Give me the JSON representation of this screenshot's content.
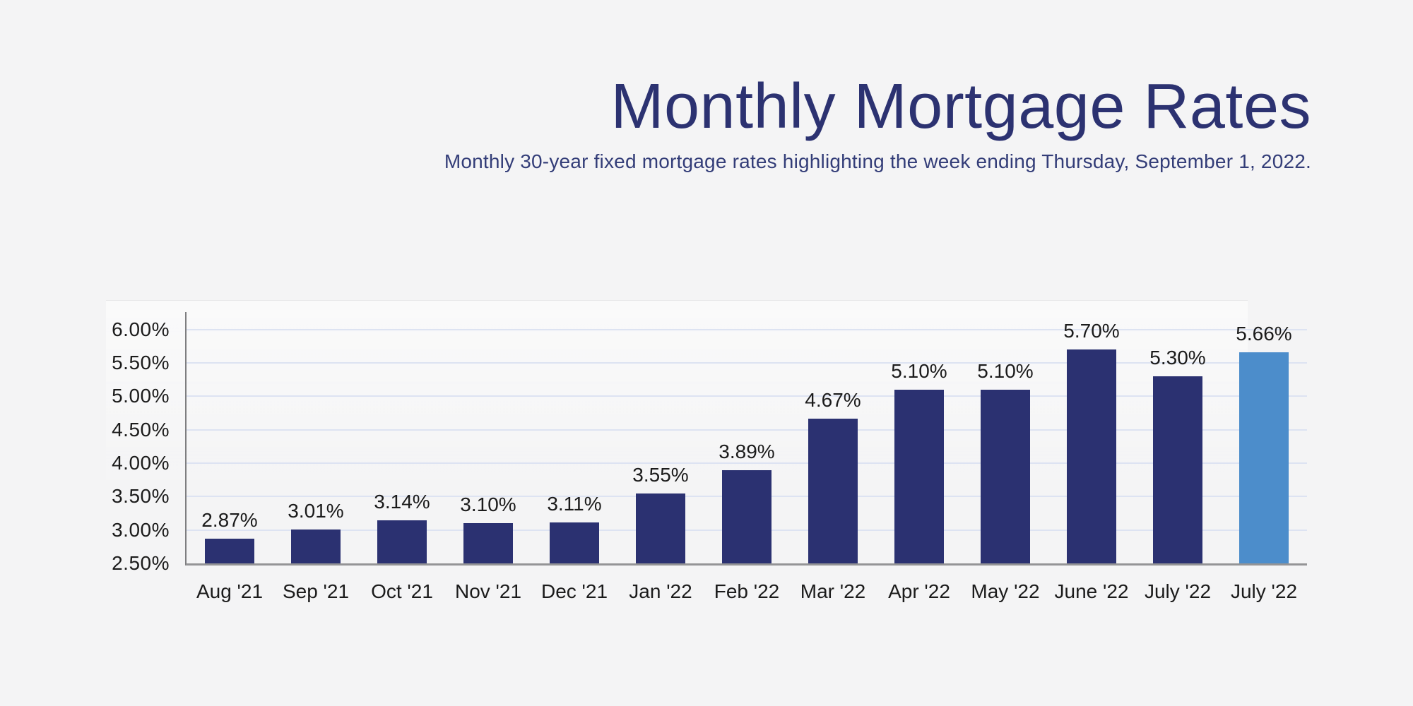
{
  "chart_data": {
    "type": "bar",
    "title": "Monthly Mortgage Rates",
    "subtitle": "Monthly 30-year fixed mortgage rates highlighting the week ending Thursday, September 1, 2022.",
    "categories": [
      "Aug '21",
      "Sep '21",
      "Oct '21",
      "Nov '21",
      "Dec '21",
      "Jan '22",
      "Feb '22",
      "Mar '22",
      "Apr '22",
      "May '22",
      "June '22",
      "July '22",
      "July '22"
    ],
    "values": [
      2.87,
      3.01,
      3.14,
      3.1,
      3.11,
      3.55,
      3.89,
      4.67,
      5.1,
      5.1,
      5.7,
      5.3,
      5.66
    ],
    "data_labels": [
      "2.87%",
      "3.01%",
      "3.14%",
      "3.10%",
      "3.11%",
      "3.55%",
      "3.89%",
      "4.67%",
      "5.10%",
      "5.10%",
      "5.70%",
      "5.30%",
      "5.66%"
    ],
    "highlighted_index": 12,
    "highlight_meaning": "week ending Thursday, September 1, 2022",
    "xlabel": "",
    "ylabel": "",
    "ylim": [
      2.5,
      6.26
    ],
    "ytick_values": [
      2.5,
      3.0,
      3.5,
      4.0,
      4.5,
      5.0,
      5.5,
      6.0
    ],
    "ytick_labels": [
      "2.50%",
      "3.00%",
      "3.50%",
      "4.00%",
      "4.50%",
      "5.00%",
      "5.50%",
      "6.00%"
    ],
    "grid": "horizontal",
    "legend": "none",
    "colors": {
      "bar": "#2b3171",
      "highlight_bar": "#4c8dcb",
      "gridline": "#dde3f2",
      "axis": "#8a8a8c",
      "text": "#1b1b1b",
      "title": "#2c3271",
      "subtitle": "#333d78",
      "background": "#f4f4f5"
    }
  }
}
